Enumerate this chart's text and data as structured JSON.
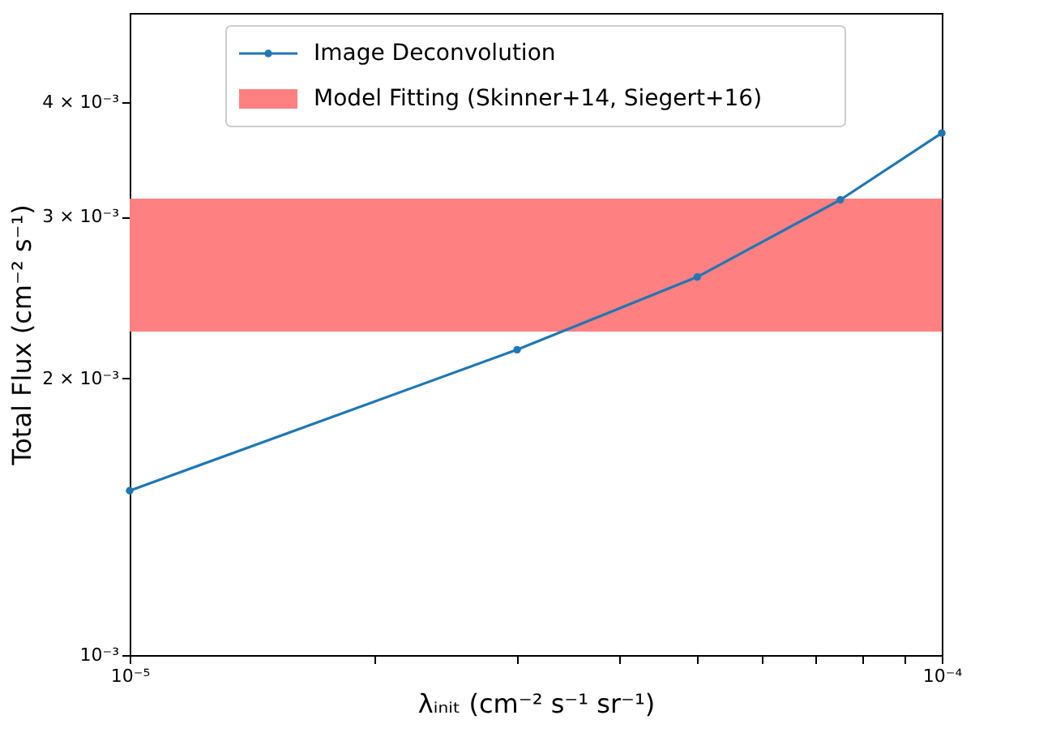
{
  "chart_data": {
    "type": "line",
    "xlabel": "λᵢₙᵢₜ (cm⁻² s⁻¹ sr⁻¹)",
    "ylabel": "Total Flux (cm⁻² s⁻¹)",
    "x": [
      1e-05,
      3e-05,
      5e-05,
      7.5e-05,
      0.0001
    ],
    "series": [
      {
        "name": "Image Deconvolution",
        "color": "#1f77b4",
        "values": [
          0.00151,
          0.00215,
          0.00258,
          0.00313,
          0.0037
        ]
      }
    ],
    "bands": [
      {
        "axis": "y",
        "from": 0.00225,
        "to": 0.00314,
        "label": "Model Fitting (Skinner+14, Siegert+16)",
        "color": "#ff8080"
      }
    ],
    "log": "xy",
    "xlim": [
      1e-05,
      0.0001
    ],
    "ylim": [
      0.001,
      0.005
    ],
    "xticks": [
      {
        "value": 1e-05,
        "label": "10⁻⁵"
      },
      {
        "value": 2e-05,
        "label": null
      },
      {
        "value": 3e-05,
        "label": null
      },
      {
        "value": 4e-05,
        "label": null
      },
      {
        "value": 5e-05,
        "label": null
      },
      {
        "value": 6e-05,
        "label": null
      },
      {
        "value": 7e-05,
        "label": null
      },
      {
        "value": 8e-05,
        "label": null
      },
      {
        "value": 9e-05,
        "label": null
      },
      {
        "value": 0.0001,
        "label": "10⁻⁴"
      }
    ],
    "yticks": [
      {
        "value": 0.001,
        "label": "10⁻³"
      },
      {
        "value": 0.002,
        "label": "2 × 10⁻³"
      },
      {
        "value": 0.003,
        "label": "3 × 10⁻³"
      },
      {
        "value": 0.004,
        "label": "4 × 10⁻³"
      }
    ],
    "grid": false,
    "legend": "top",
    "marker": "circle",
    "line_style": "solid"
  }
}
